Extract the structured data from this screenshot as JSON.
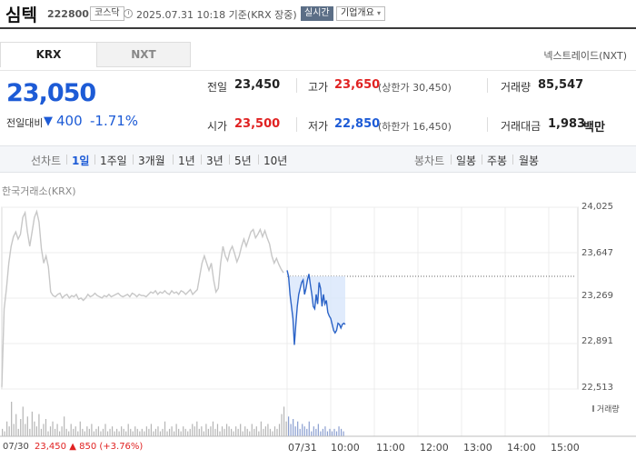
{
  "header": {
    "stock_name": "심텍",
    "stock_code": "222800",
    "market_badge": "코스닥",
    "timestamp": "2025.07.31 10:18 기준(KRX 장중)",
    "realtime_badge": "실시간",
    "overview_button": "기업개요",
    "overview_chevron": "▾"
  },
  "tabs": [
    {
      "label": "KRX",
      "active": true
    },
    {
      "label": "NXT",
      "active": false
    }
  ],
  "nxt_label": "넥스트레이드(NXT)",
  "price": {
    "current": "23,050",
    "prev_label": "전일대비",
    "arrow": "▼",
    "change": "400",
    "change_pct": "-1.71%"
  },
  "info": {
    "prev_close": {
      "label": "전일",
      "value": "23,450"
    },
    "high": {
      "label": "고가",
      "value": "23,650",
      "limit_label": "(상한가 30,450)"
    },
    "volume": {
      "label": "거래량",
      "value": "85,547"
    },
    "open": {
      "label": "시가",
      "value": "23,500"
    },
    "low": {
      "label": "저가",
      "value": "22,850",
      "limit_label": "(하한가 16,450)"
    },
    "trade_value": {
      "label": "거래대금",
      "value": "1,983",
      "unit": "백만"
    }
  },
  "periods": {
    "line_label": "선차트",
    "line_items": [
      "1일",
      "1주일",
      "3개월",
      "1년",
      "3년",
      "5년",
      "10년"
    ],
    "active": "1일",
    "candle_label": "봉차트",
    "candle_items": [
      "일봉",
      "주봉",
      "월봉"
    ]
  },
  "chart": {
    "source": "한국거래소(KRX)",
    "y_ticks": [
      "24,025",
      "23,647",
      "23,269",
      "22,891",
      "22,513"
    ],
    "x_ticks": [
      "07/30",
      "07/31",
      "10:00",
      "11:00",
      "12:00",
      "13:00",
      "14:00",
      "15:00"
    ],
    "prev_day_summary": {
      "close": "23,450",
      "arrow": "▲",
      "change": "850",
      "pct": "(+3.76%)"
    },
    "volume_legend": "거래량",
    "colors": {
      "prev_day_line": "#c7c7c7",
      "today_line": "#2b63c7",
      "today_fill": "#dbe7fb"
    }
  },
  "chart_data": {
    "type": "line",
    "title": "",
    "xlabel": "",
    "ylabel": "",
    "ylim": [
      22513,
      24025
    ],
    "y_ticks": [
      24025,
      23647,
      23269,
      22891,
      22513
    ],
    "reference_line": 23450,
    "series": [
      {
        "name": "",
        "values": [
          22530,
          23180,
          23350,
          23560,
          23700,
          23780,
          23820,
          23760,
          23800,
          23940,
          23980,
          23820,
          23700,
          23820,
          23940,
          23990,
          23900,
          23680,
          23560,
          23620,
          23530,
          23320,
          23290,
          23280,
          23300,
          23310,
          23270,
          23290,
          23300,
          23270,
          23290,
          23280,
          23300,
          23260,
          23270,
          23250,
          23270,
          23300,
          23280,
          23290,
          23310,
          23290,
          23280,
          23270,
          23290,
          23280,
          23300,
          23280,
          23290,
          23300,
          23310,
          23290,
          23280,
          23290,
          23300,
          23280,
          23310,
          23300,
          23280,
          23300,
          23290,
          23290,
          23280,
          23300,
          23320,
          23310,
          23330,
          23300,
          23320,
          23310,
          23330,
          23310,
          23300,
          23330,
          23310,
          23320,
          23300,
          23330,
          23320,
          23300,
          23320,
          23340,
          23300,
          23320,
          23340,
          23450,
          23560,
          23620,
          23560,
          23500,
          23560,
          23420,
          23320,
          23350,
          23560,
          23700,
          23620,
          23580,
          23660,
          23700,
          23640,
          23570,
          23620,
          23700,
          23760,
          23700,
          23760,
          23820,
          23840,
          23770,
          23800,
          23840,
          23780,
          23830,
          23770,
          23720,
          23620,
          23560,
          23600,
          23550,
          23510,
          23480
        ]
      },
      {
        "name": "",
        "values": [
          23500,
          23450,
          23300,
          23200,
          23100,
          22880,
          23050,
          23200,
          23300,
          23350,
          23400,
          23420,
          23300,
          23350,
          23420,
          23470,
          23380,
          23300,
          23200,
          23180,
          23300,
          23220,
          23400,
          23350,
          23200,
          23300,
          23220,
          23250,
          23150,
          23120,
          23100,
          23050,
          23000,
          22980,
          23000,
          23060,
          23050,
          23020,
          23050,
          23060,
          23050
        ]
      }
    ],
    "volume_values": [
      3,
      2,
      6,
      4,
      14,
      5,
      9,
      3,
      7,
      12,
      5,
      8,
      3,
      10,
      6,
      4,
      9,
      3,
      5,
      7,
      2,
      4,
      6,
      3,
      5,
      2,
      4,
      8,
      3,
      2,
      5,
      3,
      4,
      2,
      6,
      3,
      2,
      4,
      3,
      5,
      2,
      3,
      4,
      2,
      3,
      5,
      2,
      3,
      4,
      2,
      3,
      2,
      4,
      3,
      2,
      5,
      3,
      2,
      4,
      3,
      2,
      3,
      2,
      4,
      3,
      5,
      2,
      3,
      4,
      2,
      3,
      6,
      2,
      3,
      4,
      2,
      5,
      3,
      2,
      4,
      3,
      2,
      3,
      5,
      4,
      6,
      3,
      4,
      2,
      5,
      3,
      4,
      6,
      3,
      5,
      2,
      4,
      3,
      5,
      4,
      3,
      2,
      4,
      3,
      5,
      2,
      4,
      3,
      2,
      5,
      3,
      4,
      2,
      6,
      3,
      4,
      5,
      3,
      2,
      4,
      3,
      5,
      9,
      12,
      6,
      8,
      5,
      7,
      4,
      6,
      3,
      5,
      4,
      3,
      6,
      2,
      4,
      3,
      5,
      2,
      3,
      4,
      2,
      3,
      2,
      3,
      2,
      4,
      3,
      2
    ]
  }
}
